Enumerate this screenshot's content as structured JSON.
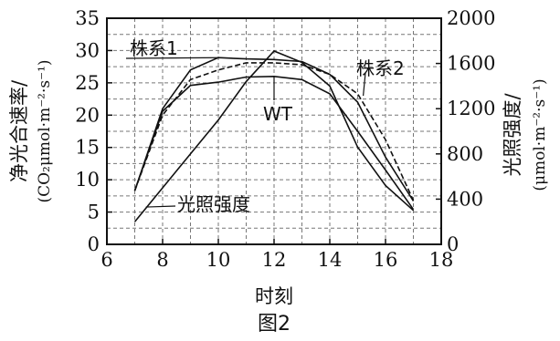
{
  "chart_data": {
    "type": "line",
    "xlabel": "时刻",
    "caption": "图2",
    "left_axis": {
      "title": "净光合速率/",
      "unit": "(CO₂μmol·m⁻²·s⁻¹)",
      "range": [
        0,
        35
      ],
      "ticks": [
        "0",
        "5",
        "10",
        "15",
        "20",
        "25",
        "30",
        "35"
      ]
    },
    "right_axis": {
      "title": "光照强度/",
      "unit": "(μmol·m⁻²·s⁻¹)",
      "range": [
        0,
        2000
      ],
      "ticks": [
        "0",
        "400",
        "800",
        "1200",
        "1600",
        "2000"
      ]
    },
    "x_axis": {
      "range": [
        6,
        18
      ],
      "ticks": [
        "6",
        "8",
        "10",
        "12",
        "14",
        "16",
        "18"
      ]
    },
    "grid": true,
    "series": [
      {
        "name": "株系1",
        "axis": "left",
        "style": "solid",
        "x": [
          7,
          8,
          9,
          10,
          11,
          12,
          13,
          14,
          15,
          16,
          17
        ],
        "y": [
          8.3,
          21.0,
          27.0,
          28.9,
          28.7,
          28.6,
          28.3,
          26.3,
          22.0,
          13.5,
          6.7
        ]
      },
      {
        "name": "株系2",
        "axis": "left",
        "style": "dashed",
        "x": [
          7,
          8,
          9,
          10,
          11,
          12,
          13,
          14,
          15,
          16,
          17
        ],
        "y": [
          8.3,
          20.0,
          25.5,
          27.0,
          28.1,
          28.1,
          27.8,
          26.3,
          23.3,
          16.2,
          6.8
        ]
      },
      {
        "name": "WT",
        "axis": "left",
        "style": "solid",
        "x": [
          7,
          8,
          9,
          10,
          11,
          12,
          13,
          14,
          15,
          16,
          17
        ],
        "y": [
          8.3,
          20.6,
          24.6,
          25.1,
          25.9,
          26.0,
          25.5,
          23.3,
          17.5,
          11.5,
          5.4
        ]
      },
      {
        "name": "光照强度",
        "axis": "right",
        "style": "solid",
        "x": [
          7,
          8,
          9,
          10,
          11,
          12,
          13,
          14,
          15,
          16,
          17
        ],
        "y": [
          200,
          500,
          800,
          1100,
          1440,
          1710,
          1610,
          1400,
          860,
          520,
          300
        ]
      }
    ]
  }
}
